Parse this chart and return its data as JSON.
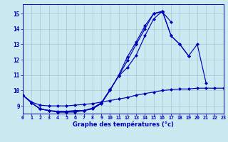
{
  "title": "Graphe des températures (°c)",
  "background_color": "#cbe9f0",
  "grid_color": "#a0c8d8",
  "line_color": "#0000bb",
  "hours": [
    0,
    1,
    2,
    3,
    4,
    5,
    6,
    7,
    8,
    9,
    10,
    11,
    12,
    13,
    14,
    15,
    16,
    17,
    18,
    19,
    20,
    21,
    22,
    23
  ],
  "line1": [
    9.7,
    9.2,
    8.8,
    8.7,
    8.6,
    8.6,
    8.6,
    8.7,
    8.8,
    9.15,
    10.0,
    11.0,
    12.2,
    13.15,
    14.2,
    15.0,
    15.1,
    14.45,
    null,
    null,
    null,
    null,
    null,
    null
  ],
  "line2": [
    9.7,
    9.2,
    8.8,
    8.7,
    8.6,
    8.6,
    8.65,
    8.7,
    8.85,
    9.2,
    10.05,
    10.95,
    11.5,
    12.3,
    13.55,
    14.65,
    15.15,
    13.55,
    13.0,
    12.25,
    null,
    null,
    null,
    null
  ],
  "line3": [
    9.7,
    9.2,
    8.8,
    8.7,
    8.65,
    8.65,
    8.7,
    8.7,
    8.85,
    9.2,
    10.05,
    10.95,
    11.95,
    13.0,
    null,
    null,
    null,
    null,
    null,
    null,
    null,
    null,
    null,
    null
  ],
  "line4": [
    9.7,
    9.25,
    9.05,
    9.0,
    9.0,
    9.0,
    9.05,
    9.1,
    9.15,
    9.25,
    9.35,
    9.45,
    9.55,
    9.7,
    9.8,
    9.9,
    10.0,
    10.05,
    10.1,
    10.1,
    10.15,
    10.15,
    10.15,
    10.15
  ],
  "line5": [
    null,
    null,
    null,
    null,
    null,
    null,
    null,
    null,
    null,
    null,
    null,
    null,
    null,
    13.0,
    14.0,
    15.0,
    15.15,
    13.55,
    13.0,
    12.25,
    13.0,
    10.5,
    null,
    null
  ],
  "ylim": [
    8.5,
    15.6
  ],
  "yticks": [
    9,
    10,
    11,
    12,
    13,
    14,
    15
  ],
  "xlim": [
    0,
    23
  ]
}
